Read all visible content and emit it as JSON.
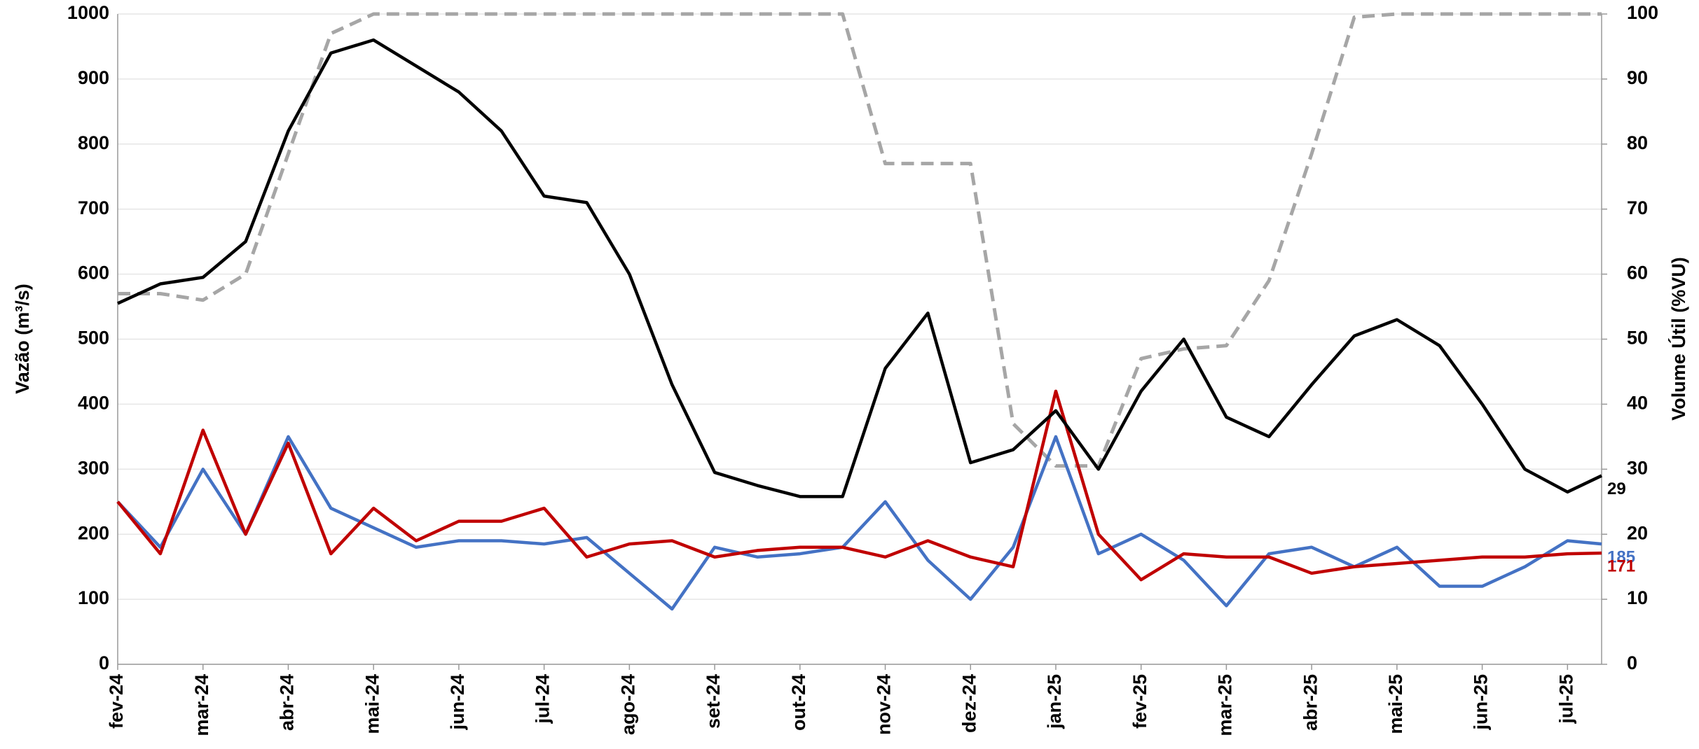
{
  "chart_data": {
    "type": "line",
    "ylabel": "Vazão (m³/s)",
    "y2label": "Volume Útil (%VU)",
    "x": [
      0,
      0.5,
      1,
      1.5,
      2,
      2.5,
      3,
      3.5,
      4,
      4.5,
      5,
      5.5,
      6,
      6.5,
      7,
      7.5,
      8,
      8.5,
      9,
      9.5,
      10,
      10.5,
      11,
      11.5,
      12,
      12.5,
      13,
      13.5,
      14,
      14.5,
      15,
      15.5,
      16,
      16.5,
      17,
      17.4
    ],
    "xlim": [
      0,
      17.4
    ],
    "xticks": [
      {
        "value": 0,
        "label": "fev-24"
      },
      {
        "value": 1,
        "label": "mar-24"
      },
      {
        "value": 2,
        "label": "abr-24"
      },
      {
        "value": 3,
        "label": "mai-24"
      },
      {
        "value": 4,
        "label": "jun-24"
      },
      {
        "value": 5,
        "label": "jul-24"
      },
      {
        "value": 6,
        "label": "ago-24"
      },
      {
        "value": 7,
        "label": "set-24"
      },
      {
        "value": 8,
        "label": "out-24"
      },
      {
        "value": 9,
        "label": "nov-24"
      },
      {
        "value": 10,
        "label": "dez-24"
      },
      {
        "value": 11,
        "label": "jan-25"
      },
      {
        "value": 12,
        "label": "fev-25"
      },
      {
        "value": 13,
        "label": "mar-25"
      },
      {
        "value": 14,
        "label": "abr-25"
      },
      {
        "value": 15,
        "label": "mai-25"
      },
      {
        "value": 16,
        "label": "jun-25"
      },
      {
        "value": 17,
        "label": "jul-25"
      }
    ],
    "ylim": [
      0,
      1000
    ],
    "yticks": [
      0,
      100,
      200,
      300,
      400,
      500,
      600,
      700,
      800,
      900,
      1000
    ],
    "y2lim": [
      0,
      100
    ],
    "y2ticks": [
      0,
      10,
      20,
      30,
      40,
      50,
      60,
      70,
      80,
      90,
      100
    ],
    "grid": true,
    "series": [
      {
        "color": "#4472c4",
        "axis": "y",
        "dashed": false,
        "end_label": true,
        "values": [
          250,
          180,
          300,
          200,
          350,
          240,
          210,
          180,
          190,
          190,
          185,
          195,
          140,
          85,
          180,
          165,
          170,
          180,
          250,
          160,
          100,
          180,
          350,
          170,
          200,
          160,
          90,
          170,
          180,
          150,
          180,
          120,
          120,
          150,
          190,
          185
        ]
      },
      {
        "color": "#c00000",
        "axis": "y",
        "dashed": false,
        "end_label": true,
        "values": [
          250,
          170,
          360,
          200,
          340,
          170,
          240,
          190,
          220,
          220,
          240,
          165,
          185,
          190,
          165,
          175,
          180,
          180,
          165,
          190,
          165,
          150,
          420,
          200,
          130,
          170,
          165,
          165,
          140,
          150,
          155,
          160,
          165,
          165,
          170,
          171
        ]
      },
      {
        "color": "#000000",
        "axis": "y2",
        "dashed": false,
        "end_label": true,
        "values": [
          55.5,
          58.5,
          59.5,
          65,
          82,
          94,
          96,
          92,
          88,
          82,
          72,
          71,
          60,
          43,
          29.5,
          27.5,
          25.8,
          25.8,
          45.5,
          54,
          31,
          33,
          39,
          30,
          42,
          50,
          38,
          35,
          43,
          50.5,
          53,
          49,
          40,
          30,
          26.5,
          29
        ]
      },
      {
        "color": "#a6a6a6",
        "axis": "y2",
        "dashed": true,
        "end_label": false,
        "values": [
          57,
          57,
          56,
          60,
          78.5,
          97,
          100,
          100,
          100,
          100,
          100,
          100,
          100,
          100,
          100,
          100,
          100,
          100,
          77,
          77,
          77,
          37,
          30.5,
          30.5,
          47,
          48.5,
          49,
          59,
          78.5,
          99.5,
          100,
          100,
          100,
          100,
          100,
          100
        ]
      }
    ]
  }
}
